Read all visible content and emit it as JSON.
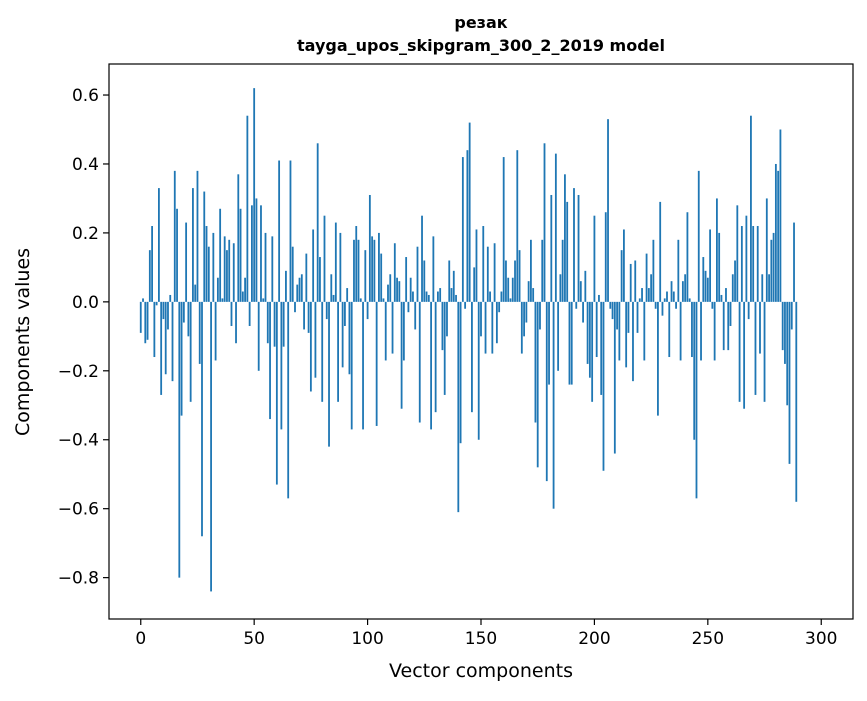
{
  "chart_data": {
    "type": "bar",
    "title_line1": "резак",
    "title_line2": "tayga_upos_skipgram_300_2_2019 model",
    "xlabel": "Vector components",
    "ylabel": "Components values",
    "xlim": [
      -14,
      314
    ],
    "ylim": [
      -0.92,
      0.69
    ],
    "bar_color": "#1f77b4",
    "grid": false,
    "x_ticks": [
      0,
      50,
      100,
      150,
      200,
      250,
      300
    ],
    "x_tick_labels": [
      "0",
      "50",
      "100",
      "150",
      "200",
      "250",
      "300"
    ],
    "y_ticks": [
      0.6,
      0.4,
      0.2,
      0.0,
      -0.2,
      -0.4,
      -0.6,
      -0.8
    ],
    "y_tick_labels": [
      "0.6",
      "0.4",
      "0.2",
      "0.0",
      "−0.2",
      "−0.4",
      "−0.6",
      "−0.8"
    ],
    "values": [
      -0.09,
      0.01,
      -0.12,
      -0.11,
      0.15,
      0.22,
      -0.16,
      -0.01,
      0.33,
      -0.27,
      -0.05,
      -0.21,
      -0.08,
      0.02,
      -0.23,
      0.38,
      0.27,
      -0.8,
      -0.33,
      -0.06,
      0.23,
      -0.1,
      -0.29,
      0.33,
      0.05,
      0.38,
      -0.18,
      -0.68,
      0.32,
      0.22,
      0.16,
      -0.84,
      0.2,
      -0.17,
      0.07,
      0.27,
      0.01,
      0.19,
      0.15,
      0.18,
      -0.07,
      0.17,
      -0.12,
      0.37,
      0.27,
      0.03,
      0.07,
      0.54,
      -0.07,
      0.28,
      0.62,
      0.3,
      -0.2,
      0.28,
      0.01,
      0.2,
      -0.12,
      -0.34,
      0.19,
      -0.13,
      -0.53,
      0.41,
      -0.37,
      -0.13,
      0.09,
      -0.57,
      0.41,
      0.16,
      -0.03,
      0.05,
      0.07,
      0.08,
      -0.08,
      0.14,
      -0.09,
      -0.26,
      0.21,
      -0.22,
      0.46,
      0.13,
      -0.29,
      0.25,
      -0.05,
      -0.42,
      0.08,
      0.02,
      0.23,
      -0.29,
      0.2,
      -0.19,
      -0.07,
      0.04,
      -0.21,
      -0.37,
      0.18,
      0.22,
      0.18,
      0.01,
      -0.37,
      0.15,
      -0.05,
      0.31,
      0.19,
      0.18,
      -0.36,
      0.2,
      0.14,
      0.01,
      -0.17,
      0.05,
      0.08,
      -0.15,
      0.17,
      0.07,
      0.06,
      -0.31,
      -0.17,
      0.13,
      -0.03,
      0.07,
      0.03,
      -0.08,
      0.16,
      -0.35,
      0.25,
      0.12,
      0.03,
      0.02,
      -0.37,
      0.19,
      -0.32,
      0.03,
      0.04,
      -0.14,
      -0.27,
      -0.1,
      0.12,
      0.04,
      0.09,
      0.02,
      -0.61,
      -0.41,
      0.42,
      -0.02,
      0.44,
      0.52,
      -0.32,
      0.1,
      0.21,
      -0.4,
      -0.1,
      0.22,
      -0.15,
      0.16,
      0.03,
      -0.15,
      0.17,
      -0.12,
      -0.03,
      0.03,
      0.42,
      0.12,
      0.07,
      0.01,
      0.07,
      0.12,
      0.44,
      0.15,
      -0.15,
      -0.1,
      -0.06,
      0.06,
      0.18,
      0.04,
      -0.35,
      -0.48,
      -0.08,
      0.18,
      0.46,
      -0.52,
      -0.24,
      0.31,
      -0.6,
      0.43,
      -0.2,
      0.08,
      0.18,
      0.37,
      0.29,
      -0.24,
      -0.24,
      0.33,
      -0.02,
      0.31,
      0.06,
      -0.06,
      0.09,
      -0.18,
      -0.22,
      -0.29,
      0.25,
      -0.16,
      0.02,
      -0.27,
      -0.49,
      0.26,
      0.53,
      -0.02,
      -0.05,
      -0.44,
      -0.08,
      -0.17,
      0.15,
      0.21,
      -0.19,
      -0.09,
      0.11,
      -0.23,
      0.12,
      -0.09,
      0.01,
      0.04,
      -0.17,
      0.14,
      0.04,
      0.08,
      0.18,
      -0.02,
      -0.33,
      0.29,
      -0.04,
      0.01,
      0.03,
      -0.16,
      0.06,
      0.03,
      -0.02,
      0.18,
      -0.17,
      0.06,
      0.08,
      0.26,
      0.01,
      -0.16,
      -0.4,
      -0.57,
      0.38,
      -0.17,
      0.13,
      0.09,
      0.07,
      0.21,
      -0.02,
      -0.17,
      0.3,
      0.2,
      0.02,
      -0.14,
      0.04,
      -0.14,
      -0.07,
      0.08,
      0.12,
      0.28,
      -0.29,
      0.22,
      -0.31,
      0.25,
      -0.05,
      0.54,
      0.22,
      -0.27,
      0.22,
      -0.15,
      0.08,
      -0.29,
      0.3,
      0.08,
      0.18,
      0.2,
      0.4,
      0.38,
      0.5,
      -0.14,
      -0.18,
      -0.3,
      -0.47,
      -0.08,
      0.23,
      -0.58
    ]
  }
}
